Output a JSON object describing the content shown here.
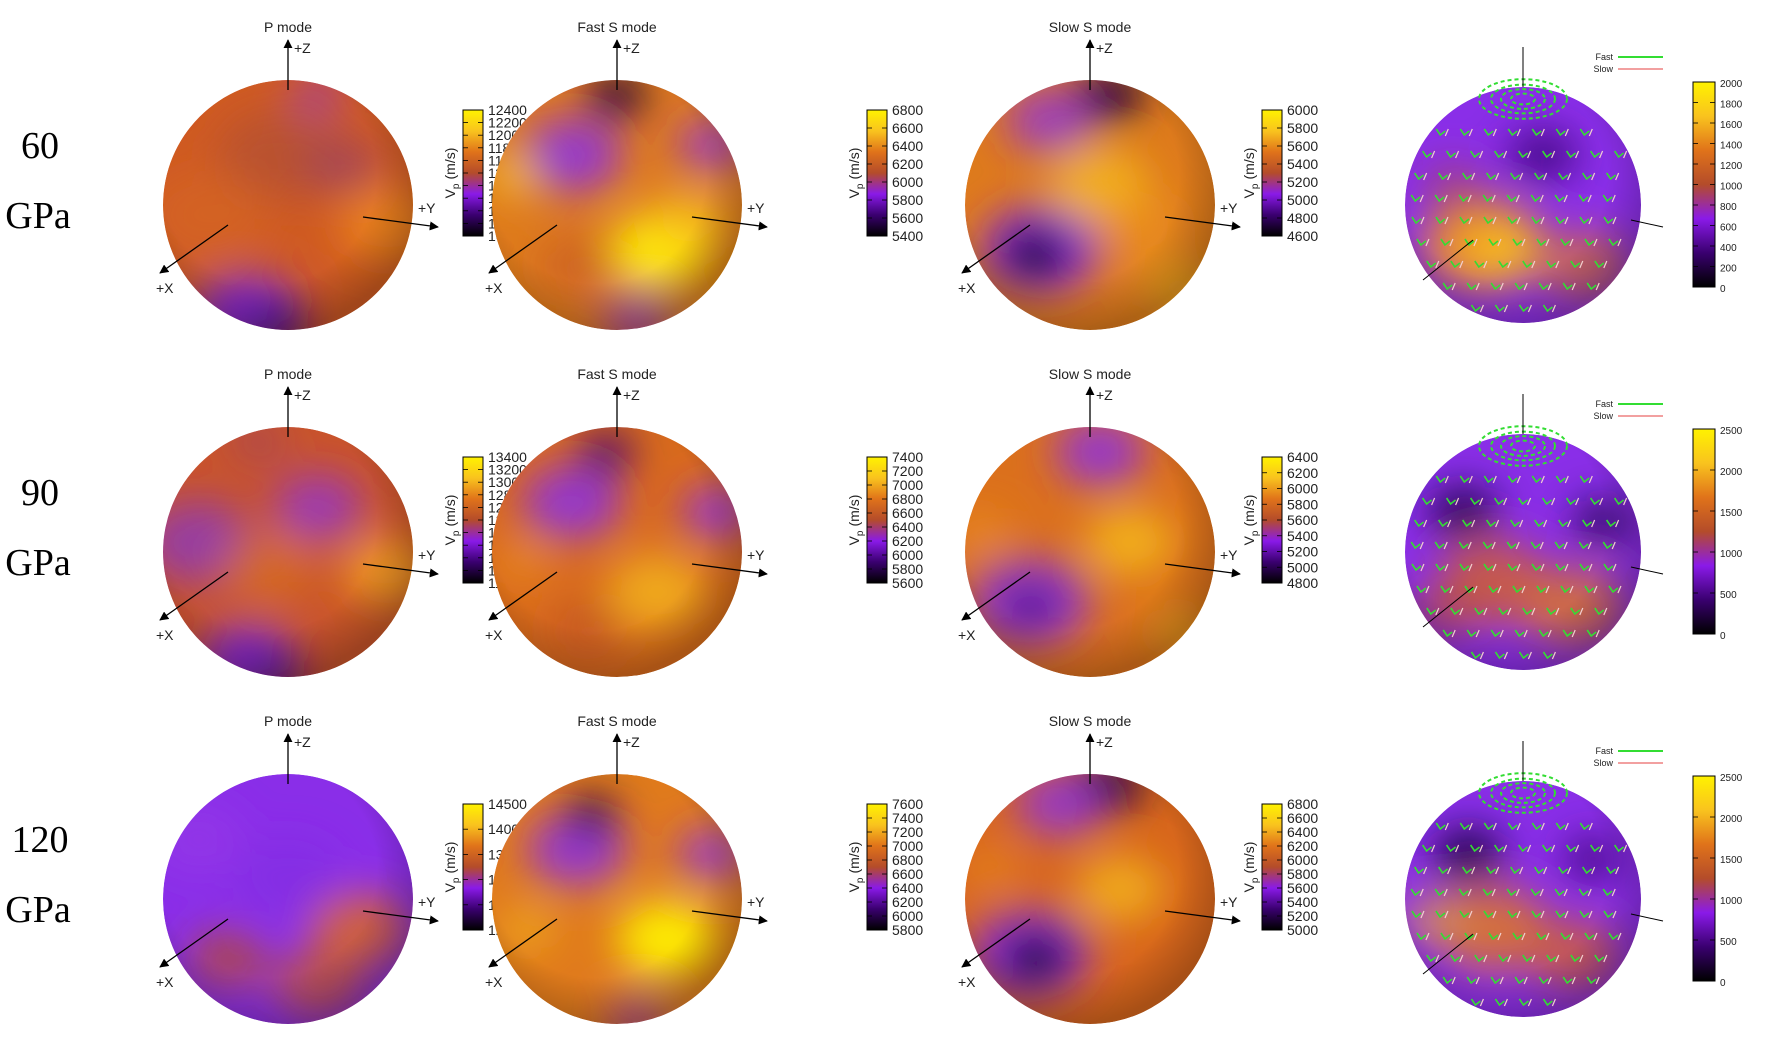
{
  "figure": {
    "colormap": [
      "#000000",
      "#3a0070",
      "#8a1ae8",
      "#b44c2a",
      "#e0731a",
      "#f9c31e",
      "#fff200"
    ],
    "axis_labels": {
      "x": "+X",
      "y": "+Y",
      "z": "+Z"
    },
    "colorbar_label_main": "V",
    "colorbar_label_sub": "p",
    "colorbar_label_unit": "(m/s)",
    "legend": {
      "fast": "Fast",
      "slow": "Slow",
      "fast_color": "#33dd33",
      "slow_color": "#f2a0a0"
    }
  },
  "chart_data": [
    {
      "row_label_1": "60",
      "row_label_2": "GPa",
      "panels": [
        {
          "type": "heatmap",
          "title": "P mode",
          "ticks": [
            "12400",
            "12200",
            "12000",
            "11800",
            "11600",
            "11400",
            "11200",
            "11000",
            "10800",
            "10600",
            "10400"
          ]
        },
        {
          "type": "heatmap",
          "title": "Fast S mode",
          "ticks": [
            "6800",
            "6600",
            "6400",
            "6200",
            "6000",
            "5800",
            "5600",
            "5400"
          ]
        },
        {
          "type": "heatmap",
          "title": "Slow S mode",
          "ticks": [
            "6000",
            "5800",
            "5600",
            "5400",
            "5200",
            "5000",
            "4800",
            "4600"
          ]
        },
        {
          "type": "heatmap",
          "title": "",
          "ticks": [
            "2000",
            "1800",
            "1600",
            "1400",
            "1200",
            "1000",
            "800",
            "600",
            "400",
            "200",
            "0"
          ]
        }
      ]
    },
    {
      "row_label_1": "90",
      "row_label_2": "GPa",
      "panels": [
        {
          "type": "heatmap",
          "title": "P mode",
          "ticks": [
            "13400",
            "13200",
            "13000",
            "12800",
            "12600",
            "12400",
            "12200",
            "12000",
            "11800",
            "11600",
            "11400"
          ]
        },
        {
          "type": "heatmap",
          "title": "Fast S mode",
          "ticks": [
            "7400",
            "7200",
            "7000",
            "6800",
            "6600",
            "6400",
            "6200",
            "6000",
            "5800",
            "5600"
          ]
        },
        {
          "type": "heatmap",
          "title": "Slow S mode",
          "ticks": [
            "6400",
            "6200",
            "6000",
            "5800",
            "5600",
            "5400",
            "5200",
            "5000",
            "4800"
          ]
        },
        {
          "type": "heatmap",
          "title": "",
          "ticks": [
            "2500",
            "2000",
            "1500",
            "1000",
            "500",
            "0"
          ]
        }
      ]
    },
    {
      "row_label_1": "120",
      "row_label_2": "GPa",
      "panels": [
        {
          "type": "heatmap",
          "title": "P mode",
          "ticks": [
            "14500",
            "14000",
            "13500",
            "13000",
            "12500",
            "12000"
          ]
        },
        {
          "type": "heatmap",
          "title": "Fast S mode",
          "ticks": [
            "7600",
            "7400",
            "7200",
            "7000",
            "6800",
            "6600",
            "6400",
            "6200",
            "6000",
            "5800"
          ]
        },
        {
          "type": "heatmap",
          "title": "Slow S mode",
          "ticks": [
            "6800",
            "6600",
            "6400",
            "6200",
            "6000",
            "5800",
            "5600",
            "5400",
            "5200",
            "5000"
          ]
        },
        {
          "type": "heatmap",
          "title": "",
          "ticks": [
            "2500",
            "2000",
            "1500",
            "1000",
            "500",
            "0"
          ]
        }
      ]
    }
  ]
}
